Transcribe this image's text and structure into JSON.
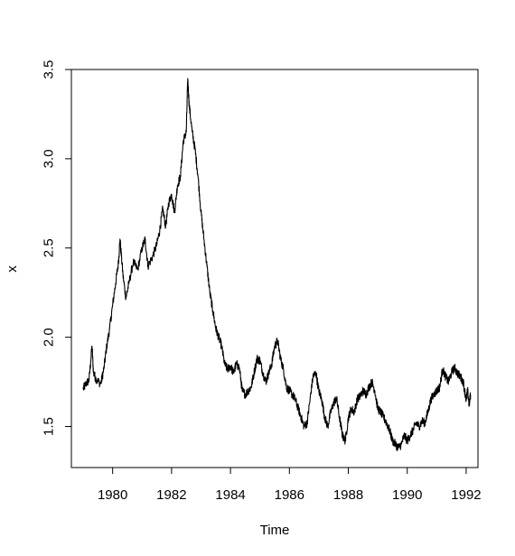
{
  "chart_data": {
    "type": "line",
    "title": "",
    "xlabel": "Time",
    "ylabel": "x",
    "xlim": [
      1978.6,
      1992.4
    ],
    "ylim": [
      1.27,
      3.5
    ],
    "x_ticks": [
      1980,
      1982,
      1984,
      1986,
      1988,
      1990,
      1992
    ],
    "x_tick_labels": [
      "1980",
      "1982",
      "1984",
      "1986",
      "1988",
      "1990",
      "1992"
    ],
    "y_ticks": [
      1.5,
      2.0,
      2.5,
      3.0,
      3.5
    ],
    "y_tick_labels": [
      "1.5",
      "2.0",
      "2.5",
      "3.0",
      "3.5"
    ],
    "grid": false,
    "legend": "none",
    "line_color": "#000000",
    "series": [
      {
        "x": [
          1979.0,
          1979.1,
          1979.2,
          1979.3,
          1979.35,
          1979.45,
          1979.6,
          1979.7,
          1979.8,
          1979.9,
          1980.0,
          1980.1,
          1980.2,
          1980.25,
          1980.35,
          1980.45,
          1980.55,
          1980.7,
          1980.85,
          1981.0,
          1981.1,
          1981.2,
          1981.35,
          1981.5,
          1981.6,
          1981.7,
          1981.8,
          1981.9,
          1982.0,
          1982.1,
          1982.2,
          1982.3,
          1982.4,
          1982.5,
          1982.55,
          1982.6,
          1982.7,
          1982.8,
          1982.9,
          1983.0,
          1983.1,
          1983.2,
          1983.3,
          1983.4,
          1983.5,
          1983.6,
          1983.7,
          1983.8,
          1983.9,
          1984.0,
          1984.1,
          1984.2,
          1984.3,
          1984.4,
          1984.5,
          1984.6,
          1984.7,
          1984.8,
          1984.9,
          1985.0,
          1985.1,
          1985.2,
          1985.3,
          1985.4,
          1985.5,
          1985.6,
          1985.7,
          1985.8,
          1985.9,
          1986.0,
          1986.1,
          1986.2,
          1986.3,
          1986.4,
          1986.5,
          1986.6,
          1986.7,
          1986.8,
          1986.9,
          1987.0,
          1987.1,
          1987.2,
          1987.3,
          1987.4,
          1987.5,
          1987.6,
          1987.7,
          1987.8,
          1987.9,
          1988.0,
          1988.1,
          1988.2,
          1988.3,
          1988.4,
          1988.5,
          1988.6,
          1988.7,
          1988.8,
          1988.9,
          1989.0,
          1989.1,
          1989.2,
          1989.3,
          1989.4,
          1989.5,
          1989.6,
          1989.7,
          1989.8,
          1989.9,
          1990.0,
          1990.1,
          1990.2,
          1990.3,
          1990.4,
          1990.5,
          1990.6,
          1990.7,
          1990.8,
          1990.9,
          1991.0,
          1991.1,
          1991.2,
          1991.3,
          1991.4,
          1991.5,
          1991.6,
          1991.7,
          1991.8,
          1991.9,
          1992.0,
          1992.05,
          1992.1,
          1992.15
        ],
        "y": [
          1.71,
          1.74,
          1.76,
          1.95,
          1.8,
          1.76,
          1.74,
          1.82,
          1.95,
          2.05,
          2.18,
          2.3,
          2.42,
          2.55,
          2.35,
          2.22,
          2.3,
          2.42,
          2.38,
          2.5,
          2.55,
          2.4,
          2.45,
          2.52,
          2.6,
          2.72,
          2.62,
          2.75,
          2.8,
          2.7,
          2.85,
          2.9,
          3.1,
          3.15,
          3.45,
          3.3,
          3.15,
          3.05,
          2.9,
          2.7,
          2.55,
          2.4,
          2.25,
          2.15,
          2.05,
          2.0,
          1.95,
          1.85,
          1.82,
          1.84,
          1.8,
          1.85,
          1.83,
          1.7,
          1.68,
          1.7,
          1.72,
          1.8,
          1.88,
          1.87,
          1.8,
          1.75,
          1.8,
          1.85,
          1.95,
          1.98,
          1.88,
          1.82,
          1.72,
          1.7,
          1.68,
          1.65,
          1.6,
          1.55,
          1.5,
          1.52,
          1.65,
          1.78,
          1.8,
          1.7,
          1.65,
          1.55,
          1.5,
          1.58,
          1.63,
          1.66,
          1.55,
          1.45,
          1.42,
          1.55,
          1.6,
          1.58,
          1.65,
          1.67,
          1.7,
          1.68,
          1.72,
          1.75,
          1.7,
          1.6,
          1.58,
          1.55,
          1.52,
          1.48,
          1.42,
          1.4,
          1.38,
          1.4,
          1.45,
          1.42,
          1.45,
          1.48,
          1.52,
          1.5,
          1.53,
          1.52,
          1.58,
          1.65,
          1.68,
          1.7,
          1.72,
          1.82,
          1.78,
          1.75,
          1.8,
          1.83,
          1.8,
          1.78,
          1.75,
          1.65,
          1.7,
          1.62,
          1.68
        ]
      }
    ]
  }
}
